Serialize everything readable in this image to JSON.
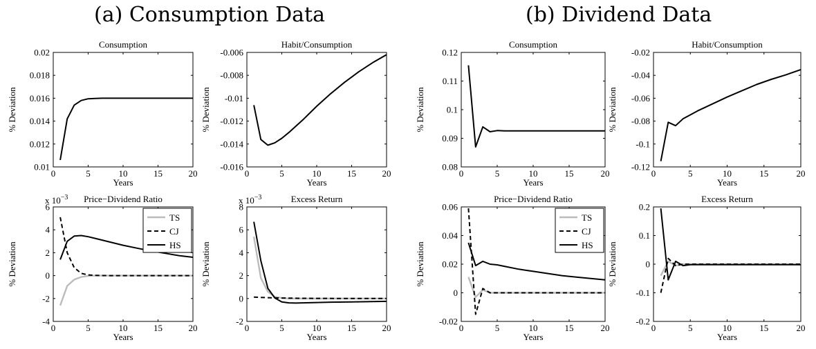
{
  "figure": {
    "left_title": "(a) Consumption Data",
    "right_title": "(b) Dividend Data"
  },
  "chart_data": [
    {
      "type": "line",
      "group": "a",
      "title": "Consumption",
      "xlabel": "Years",
      "ylabel": "% Deviation",
      "xlim": [
        0,
        20
      ],
      "ylim": [
        0.01,
        0.02
      ],
      "xticks": [
        0,
        5,
        10,
        15,
        20
      ],
      "xtick_labels": [
        "0",
        "5",
        "10",
        "15",
        "20"
      ],
      "yticks": [
        0.01,
        0.012,
        0.014,
        0.016,
        0.018,
        0.02
      ],
      "ytick_labels": [
        "0.01",
        "0.012",
        "0.014",
        "0.016",
        "0.018",
        "0.02"
      ],
      "exponent": "",
      "legend": false,
      "series": [
        {
          "color": "#000000",
          "dash": "solid",
          "x": [
            1,
            2,
            3,
            4,
            5,
            6,
            7,
            8,
            10,
            12,
            15,
            18,
            20
          ],
          "y": [
            0.0106,
            0.0142,
            0.0154,
            0.0158,
            0.01595,
            0.01598,
            0.016,
            0.016,
            0.016,
            0.016,
            0.016,
            0.016,
            0.016
          ]
        }
      ]
    },
    {
      "type": "line",
      "group": "a",
      "title": "Habit/Consumption",
      "xlabel": "Years",
      "ylabel": "% Deviation",
      "xlim": [
        0,
        20
      ],
      "ylim": [
        -0.016,
        -0.006
      ],
      "xticks": [
        0,
        5,
        10,
        15,
        20
      ],
      "xtick_labels": [
        "0",
        "5",
        "10",
        "15",
        "20"
      ],
      "yticks": [
        -0.016,
        -0.014,
        -0.012,
        -0.01,
        -0.008,
        -0.006
      ],
      "ytick_labels": [
        "-0.016",
        "-0.014",
        "-0.012",
        "-0.01",
        "-0.008",
        "-0.006"
      ],
      "exponent": "",
      "legend": false,
      "series": [
        {
          "color": "#000000",
          "dash": "solid",
          "x": [
            1,
            2,
            3,
            4,
            5,
            6,
            8,
            10,
            12,
            14,
            16,
            18,
            20
          ],
          "y": [
            -0.0106,
            -0.0136,
            -0.0141,
            -0.0139,
            -0.0135,
            -0.013,
            -0.0119,
            -0.0107,
            -0.0096,
            -0.0086,
            -0.0077,
            -0.0069,
            -0.0062
          ]
        }
      ]
    },
    {
      "type": "line",
      "group": "a",
      "title": "Price−Dividend Ratio",
      "xlabel": "Years",
      "ylabel": "% Deviation",
      "xlim": [
        0,
        20
      ],
      "ylim": [
        -4,
        6
      ],
      "xticks": [
        0,
        5,
        10,
        15,
        20
      ],
      "xtick_labels": [
        "0",
        "5",
        "10",
        "15",
        "20"
      ],
      "yticks": [
        -4,
        -2,
        0,
        2,
        4,
        6
      ],
      "ytick_labels": [
        "-4",
        "-2",
        "0",
        "2",
        "4",
        "6"
      ],
      "exponent": "x 10",
      "exponent_power": "−3",
      "legend": true,
      "series": [
        {
          "name": "TS",
          "color": "#bbbbbb",
          "dash": "solid",
          "x": [
            1,
            2,
            3,
            4,
            5,
            6,
            8,
            10,
            15,
            20
          ],
          "y": [
            -2.6,
            -0.9,
            -0.35,
            -0.12,
            -0.03,
            0,
            0,
            0,
            0,
            0
          ]
        },
        {
          "name": "CJ",
          "color": "#000000",
          "dash": "dashed",
          "x": [
            1,
            2,
            3,
            4,
            5,
            6,
            8,
            10,
            15,
            20
          ],
          "y": [
            5.1,
            2.0,
            0.7,
            0.2,
            0.06,
            0.02,
            0,
            0,
            0,
            0
          ]
        },
        {
          "name": "HS",
          "color": "#000000",
          "dash": "solid",
          "x": [
            1,
            2,
            3,
            4,
            5,
            6,
            8,
            10,
            12,
            14,
            16,
            18,
            20
          ],
          "y": [
            1.4,
            3.0,
            3.45,
            3.5,
            3.4,
            3.25,
            2.95,
            2.65,
            2.4,
            2.15,
            1.95,
            1.75,
            1.6
          ]
        }
      ]
    },
    {
      "type": "line",
      "group": "a",
      "title": "Excess Return",
      "xlabel": "Years",
      "ylabel": "% Deviation",
      "xlim": [
        0,
        20
      ],
      "ylim": [
        -2,
        8
      ],
      "xticks": [
        0,
        5,
        10,
        15,
        20
      ],
      "xtick_labels": [
        "0",
        "5",
        "10",
        "15",
        "20"
      ],
      "yticks": [
        -2,
        0,
        2,
        4,
        6,
        8
      ],
      "ytick_labels": [
        "-2",
        "0",
        "2",
        "4",
        "6",
        "8"
      ],
      "exponent": "x 10",
      "exponent_power": "−3",
      "legend": false,
      "series": [
        {
          "name": "TS",
          "color": "#bbbbbb",
          "dash": "solid",
          "x": [
            1,
            2,
            3,
            4,
            5,
            6,
            8,
            10,
            15,
            20
          ],
          "y": [
            5.4,
            1.8,
            0.6,
            0.15,
            0.05,
            0,
            0,
            0,
            0,
            0
          ]
        },
        {
          "name": "CJ",
          "color": "#000000",
          "dash": "dashed",
          "x": [
            1,
            3,
            5,
            8,
            10,
            15,
            20
          ],
          "y": [
            0.12,
            0.07,
            0.04,
            0.02,
            0.01,
            0,
            0
          ]
        },
        {
          "name": "HS",
          "color": "#000000",
          "dash": "solid",
          "x": [
            1,
            2,
            3,
            4,
            5,
            6,
            7,
            8,
            10,
            12,
            15,
            20
          ],
          "y": [
            6.7,
            3.3,
            0.9,
            0.05,
            -0.3,
            -0.38,
            -0.4,
            -0.38,
            -0.35,
            -0.32,
            -0.3,
            -0.25
          ]
        }
      ]
    },
    {
      "type": "line",
      "group": "b",
      "title": "Consumption",
      "xlabel": "Years",
      "ylabel": "% Deviation",
      "xlim": [
        0,
        20
      ],
      "ylim": [
        0.08,
        0.12
      ],
      "xticks": [
        0,
        5,
        10,
        15,
        20
      ],
      "xtick_labels": [
        "0",
        "5",
        "10",
        "15",
        "20"
      ],
      "yticks": [
        0.08,
        0.09,
        0.1,
        0.11,
        0.12
      ],
      "ytick_labels": [
        "0.08",
        "0.09",
        "0.1",
        "0.11",
        "0.12"
      ],
      "exponent": "",
      "legend": false,
      "series": [
        {
          "color": "#000000",
          "dash": "solid",
          "x": [
            1,
            2,
            3,
            4,
            5,
            6,
            8,
            10,
            15,
            20
          ],
          "y": [
            0.1155,
            0.087,
            0.094,
            0.0923,
            0.0927,
            0.0926,
            0.0926,
            0.0926,
            0.0926,
            0.0926
          ]
        }
      ]
    },
    {
      "type": "line",
      "group": "b",
      "title": "Habit/Consumption",
      "xlabel": "Years",
      "ylabel": "% Deviation",
      "xlim": [
        0,
        20
      ],
      "ylim": [
        -0.12,
        -0.02
      ],
      "xticks": [
        0,
        5,
        10,
        15,
        20
      ],
      "xtick_labels": [
        "0",
        "5",
        "10",
        "15",
        "20"
      ],
      "yticks": [
        -0.12,
        -0.1,
        -0.08,
        -0.06,
        -0.04,
        -0.02
      ],
      "ytick_labels": [
        "-0.12",
        "-0.1",
        "-0.08",
        "-0.06",
        "-0.04",
        "-0.02"
      ],
      "exponent": "",
      "legend": false,
      "series": [
        {
          "color": "#000000",
          "dash": "solid",
          "x": [
            1,
            2,
            3,
            4,
            5,
            6,
            8,
            10,
            12,
            14,
            16,
            18,
            20
          ],
          "y": [
            -0.115,
            -0.081,
            -0.084,
            -0.078,
            -0.0745,
            -0.071,
            -0.065,
            -0.059,
            -0.0535,
            -0.048,
            -0.0435,
            -0.0395,
            -0.035
          ]
        }
      ]
    },
    {
      "type": "line",
      "group": "b",
      "title": "Price−Dividend Ratio",
      "xlabel": "Years",
      "ylabel": "% Deviation",
      "xlim": [
        0,
        20
      ],
      "ylim": [
        -0.02,
        0.06
      ],
      "xticks": [
        0,
        5,
        10,
        15,
        20
      ],
      "xtick_labels": [
        "0",
        "5",
        "10",
        "15",
        "20"
      ],
      "yticks": [
        -0.02,
        0,
        0.02,
        0.04,
        0.06
      ],
      "ytick_labels": [
        "-0.02",
        "0",
        "0.02",
        "0.04",
        "0.06"
      ],
      "exponent": "",
      "legend": true,
      "series": [
        {
          "name": "TS",
          "color": "#bbbbbb",
          "dash": "solid",
          "x": [
            1,
            2,
            3,
            4,
            5,
            6,
            8,
            10,
            15,
            20
          ],
          "y": [
            0.011,
            -0.003,
            0.002,
            0.0,
            0.0,
            0.0,
            0.0,
            0.0,
            0.0,
            0.0
          ]
        },
        {
          "name": "CJ",
          "color": "#000000",
          "dash": "dashed",
          "x": [
            1,
            2,
            3,
            4,
            5,
            6,
            8,
            10,
            15,
            20
          ],
          "y": [
            0.059,
            -0.015,
            0.003,
            0.0,
            0.0,
            0.0,
            0.0,
            0.0,
            0.0,
            0.0
          ]
        },
        {
          "name": "HS",
          "color": "#000000",
          "dash": "solid",
          "x": [
            1,
            2,
            3,
            4,
            5,
            6,
            8,
            10,
            12,
            14,
            16,
            18,
            20
          ],
          "y": [
            0.035,
            0.019,
            0.022,
            0.02,
            0.0195,
            0.0185,
            0.0165,
            0.015,
            0.0135,
            0.012,
            0.011,
            0.01,
            0.009
          ]
        }
      ]
    },
    {
      "type": "line",
      "group": "b",
      "title": "Excess Return",
      "xlabel": "Years",
      "ylabel": "% Deviation",
      "xlim": [
        0,
        20
      ],
      "ylim": [
        -0.2,
        0.2
      ],
      "xticks": [
        0,
        5,
        10,
        15,
        20
      ],
      "xtick_labels": [
        "0",
        "5",
        "10",
        "15",
        "20"
      ],
      "yticks": [
        -0.2,
        -0.1,
        0,
        0.1,
        0.2
      ],
      "ytick_labels": [
        "-0.2",
        "-0.1",
        "0",
        "0.1",
        "0.2"
      ],
      "exponent": "",
      "legend": false,
      "series": [
        {
          "name": "TS",
          "color": "#bbbbbb",
          "dash": "solid",
          "x": [
            1,
            2,
            3,
            4,
            5,
            6,
            8,
            10,
            15,
            20
          ],
          "y": [
            -0.04,
            0.01,
            -0.005,
            0.0,
            0.0,
            0.0,
            0.0,
            0.0,
            0.0,
            0.0
          ]
        },
        {
          "name": "CJ",
          "color": "#000000",
          "dash": "dashed",
          "x": [
            1,
            2,
            3,
            4,
            5,
            6,
            8,
            10,
            15,
            20
          ],
          "y": [
            -0.1,
            0.02,
            -0.005,
            0.0,
            0.0,
            0.0,
            0.0,
            0.0,
            0.0,
            0.0
          ]
        },
        {
          "name": "HS",
          "color": "#000000",
          "dash": "solid",
          "x": [
            1,
            2,
            3,
            4,
            5,
            6,
            8,
            10,
            15,
            20
          ],
          "y": [
            0.195,
            -0.055,
            0.01,
            -0.005,
            -0.002,
            -0.002,
            -0.002,
            -0.002,
            -0.002,
            -0.002
          ]
        }
      ]
    }
  ]
}
